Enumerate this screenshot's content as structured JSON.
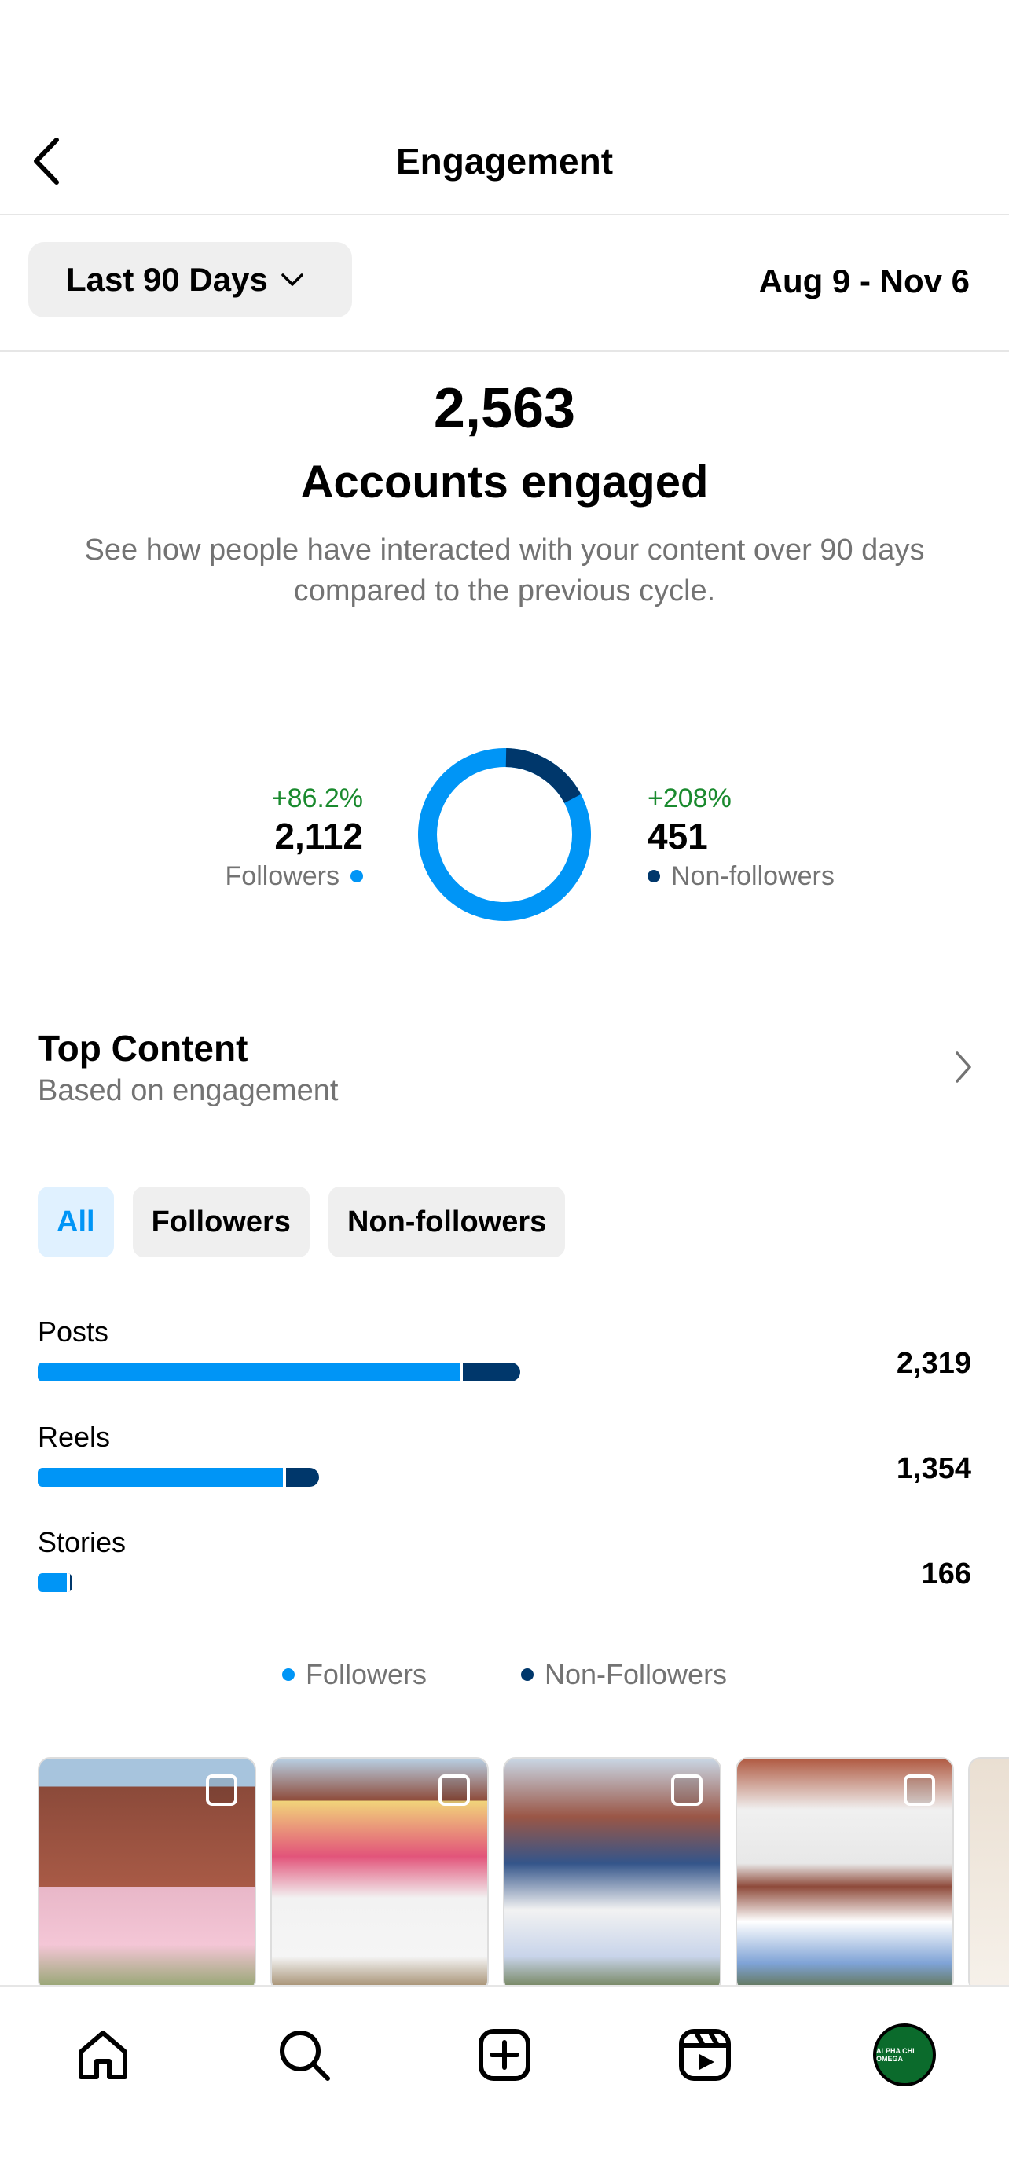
{
  "header": {
    "title": "Engagement"
  },
  "filter": {
    "range_label": "Last 90 Days",
    "date_range": "Aug 9 - Nov 6"
  },
  "summary": {
    "total": "2,563",
    "label": "Accounts engaged",
    "description": "See how people have interacted with your content over 90 days compared to the previous cycle."
  },
  "breakdown": {
    "followers": {
      "change": "+86.2%",
      "value": "2,112",
      "label": "Followers",
      "count": 2112,
      "color": "#0095f6"
    },
    "non_followers": {
      "change": "+208%",
      "value": "451",
      "label": "Non-followers",
      "count": 451,
      "color": "#00376b"
    }
  },
  "top_content": {
    "title": "Top Content",
    "subtitle": "Based on engagement",
    "tabs": [
      {
        "label": "All",
        "active": true
      },
      {
        "label": "Followers",
        "active": false
      },
      {
        "label": "Non-followers",
        "active": false
      }
    ]
  },
  "content_types": [
    {
      "label": "Posts",
      "value": "2,319",
      "followers_fraction": 0.875
    },
    {
      "label": "Reels",
      "value": "1,354",
      "followers_fraction": 0.87
    },
    {
      "label": "Stories",
      "value": "166",
      "followers_fraction": 0.85
    }
  ],
  "legend": {
    "followers": "Followers",
    "non_followers": "Non-Followers"
  },
  "colors": {
    "followers": "#0095f6",
    "non_followers": "#00376b",
    "positive": "#1a8a2e"
  },
  "avatar": {
    "text": "ALPHA CHI OMEGA"
  },
  "nav": [
    "home-icon",
    "search-icon",
    "create-icon",
    "reels-icon",
    "profile-avatar"
  ]
}
